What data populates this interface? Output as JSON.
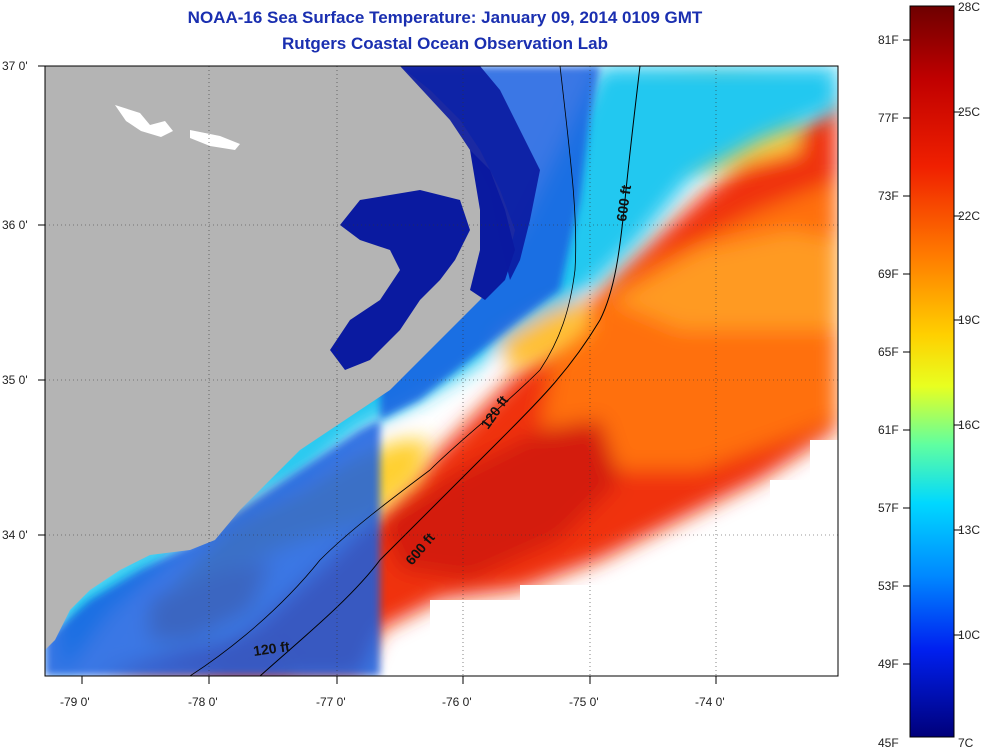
{
  "title": "NOAA-16 Sea Surface Temperature:  January 09, 2014 0109 GMT",
  "subtitle": "Rutgers Coastal Ocean Observation Lab",
  "lat_labels": [
    "37 0'",
    "36 0'",
    "35 0'",
    "34 0'"
  ],
  "lon_labels": [
    "-79 0'",
    "-78 0'",
    "-77 0'",
    "-76 0'",
    "-75 0'",
    "-74 0'"
  ],
  "contours": {
    "c600_north": "600 ft",
    "c120_mid": "120 ft",
    "c600_south": "600 ft",
    "c120_south": "120 ft"
  },
  "colorbar": {
    "top_c": "28C",
    "bottom_c": "7C",
    "bottom_f": "45F",
    "f_labels": [
      "81F",
      "77F",
      "73F",
      "69F",
      "65F",
      "61F",
      "57F",
      "53F",
      "49F"
    ],
    "c_labels": [
      "25C",
      "22C",
      "19C",
      "16C",
      "13C",
      "10C"
    ],
    "colors": [
      "#7a0000",
      "#b40000",
      "#e61a00",
      "#ff5000",
      "#ff8c00",
      "#ffc800",
      "#ffff00",
      "#b4ff40",
      "#40ffb4",
      "#00e0ff",
      "#00a0ff",
      "#0050ff",
      "#0010e0",
      "#000090"
    ]
  },
  "land_color": "#b4b4b4",
  "water_colors": {
    "deep_blue": "#0a1aa0",
    "blue": "#1a5fe0",
    "cyan": "#20c8f0",
    "yellow": "#ffd030",
    "orange": "#ff8a10",
    "red": "#f03010",
    "darkred": "#c41208"
  }
}
